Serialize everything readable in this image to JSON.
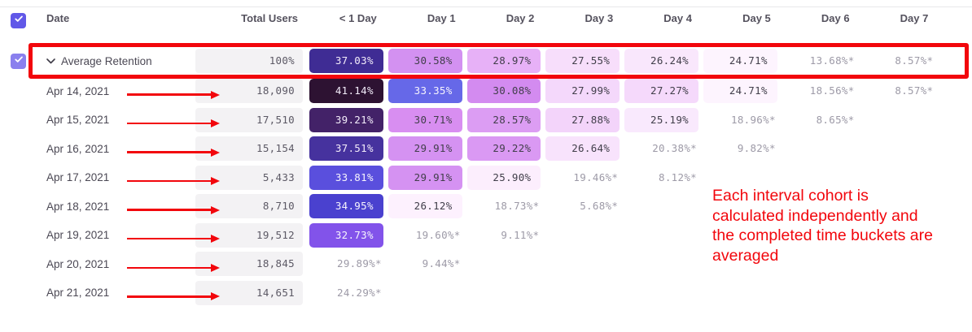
{
  "table": {
    "columns": [
      "Date",
      "Total Users",
      "< 1 Day",
      "Day 1",
      "Day 2",
      "Day 3",
      "Day 4",
      "Day 5",
      "Day 6",
      "Day 7"
    ],
    "average_row": {
      "label": "Average Retention",
      "total": "100%",
      "cells": [
        {
          "v": "37.03%",
          "bg": "#3f2c94",
          "fg": "#f3ecfa"
        },
        {
          "v": "30.58%",
          "bg": "#d391f1",
          "fg": "#413e4a"
        },
        {
          "v": "28.97%",
          "bg": "#e7b1f7",
          "fg": "#413e4a"
        },
        {
          "v": "27.55%",
          "bg": "#f7defb",
          "fg": "#413e4a"
        },
        {
          "v": "26.24%",
          "bg": "#f9e7fc",
          "fg": "#413e4a"
        },
        {
          "v": "24.71%",
          "bg": "#fdf4fe",
          "fg": "#413e4a"
        },
        {
          "v": "13.68%*"
        },
        {
          "v": "8.57%*"
        }
      ]
    },
    "rows": [
      {
        "date": "Apr 14, 2021",
        "total": "18,090",
        "cells": [
          {
            "v": "41.14%",
            "bg": "#2d1232",
            "fg": "#f3ecfa"
          },
          {
            "v": "33.35%",
            "bg": "#6668e8",
            "fg": "#f6f4fd"
          },
          {
            "v": "30.08%",
            "bg": "#d38bf0",
            "fg": "#413e4a"
          },
          {
            "v": "27.99%",
            "bg": "#f4d8fb",
            "fg": "#413e4a"
          },
          {
            "v": "27.27%",
            "bg": "#f5d9fb",
            "fg": "#413e4a"
          },
          {
            "v": "24.71%",
            "bg": "#fdf4fe",
            "fg": "#413e4a"
          },
          {
            "v": "18.56%*"
          },
          {
            "v": "8.57%*"
          }
        ]
      },
      {
        "date": "Apr 15, 2021",
        "total": "17,510",
        "cells": [
          {
            "v": "39.21%",
            "bg": "#432268",
            "fg": "#f3ecfa"
          },
          {
            "v": "30.71%",
            "bg": "#d88ef1",
            "fg": "#413e4a"
          },
          {
            "v": "28.57%",
            "bg": "#dc9df3",
            "fg": "#413e4a"
          },
          {
            "v": "27.88%",
            "bg": "#f3d4fa",
            "fg": "#413e4a"
          },
          {
            "v": "25.19%",
            "bg": "#f9e9fd",
            "fg": "#413e4a"
          },
          {
            "v": "18.96%*"
          },
          {
            "v": "8.65%*"
          }
        ]
      },
      {
        "date": "Apr 16, 2021",
        "total": "15,154",
        "cells": [
          {
            "v": "37.51%",
            "bg": "#46329e",
            "fg": "#f3ecfa"
          },
          {
            "v": "29.91%",
            "bg": "#d592f2",
            "fg": "#413e4a"
          },
          {
            "v": "29.22%",
            "bg": "#da99f3",
            "fg": "#413e4a"
          },
          {
            "v": "26.64%",
            "bg": "#f8e3fc",
            "fg": "#413e4a"
          },
          {
            "v": "20.38%*"
          },
          {
            "v": "9.82%*"
          }
        ]
      },
      {
        "date": "Apr 17, 2021",
        "total": "5,433",
        "cells": [
          {
            "v": "33.81%",
            "bg": "#5a4fdd",
            "fg": "#f6f4fd"
          },
          {
            "v": "29.91%",
            "bg": "#d592f2",
            "fg": "#413e4a"
          },
          {
            "v": "25.90%",
            "bg": "#fceefd",
            "fg": "#413e4a"
          },
          {
            "v": "19.46%*"
          },
          {
            "v": "8.12%*"
          }
        ]
      },
      {
        "date": "Apr 18, 2021",
        "total": "8,710",
        "cells": [
          {
            "v": "34.95%",
            "bg": "#4a41cf",
            "fg": "#f6f4fd"
          },
          {
            "v": "26.12%",
            "bg": "#fdf1fe",
            "fg": "#413e4a"
          },
          {
            "v": "18.73%*"
          },
          {
            "v": "5.68%*"
          }
        ]
      },
      {
        "date": "Apr 19, 2021",
        "total": "19,512",
        "cells": [
          {
            "v": "32.73%",
            "bg": "#8253ea",
            "fg": "#f6f4fd"
          },
          {
            "v": "19.60%*"
          },
          {
            "v": "9.11%*"
          }
        ]
      },
      {
        "date": "Apr 20, 2021",
        "total": "18,845",
        "cells": [
          {
            "v": "29.89%*"
          },
          {
            "v": "9.44%*"
          }
        ]
      },
      {
        "date": "Apr 21, 2021",
        "total": "14,651",
        "cells": [
          {
            "v": "24.29%*"
          }
        ]
      }
    ]
  },
  "annotation": {
    "color": "#f2060c",
    "lines": [
      "Each interval cohort is",
      "calculated independently and",
      "the completed time buckets are",
      "averaged"
    ]
  },
  "colors": {
    "select_all_checkbox": "#6158e8",
    "average_row_checkbox": "#8a80ee",
    "muted_value_text": "#9d9aa7",
    "total_cell_bg": "#f3f2f4",
    "header_text": "#55525e",
    "date_text": "#4b4854"
  }
}
